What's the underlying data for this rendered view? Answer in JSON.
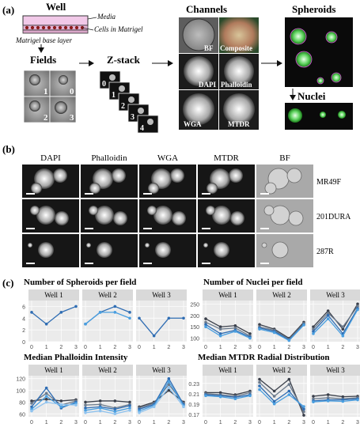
{
  "panel_a": {
    "label": "(a)",
    "well_title": "Well",
    "media_label": "Media",
    "cells_label": "Cells in Matrigel",
    "base_label": "Matrigel base layer",
    "fields_title": "Fields",
    "field_numbers": [
      "1",
      "0",
      "2",
      "3"
    ],
    "zstack_title": "Z-stack",
    "zstack_numbers": [
      "0",
      "1",
      "2",
      "3",
      "4"
    ],
    "channels_title": "Channels",
    "channel_labels": [
      "BF",
      "Composite",
      "DAPI",
      "Phalloidin",
      "WGA",
      "MTDR"
    ],
    "spheroids_title": "Spheroids",
    "nuclei_title": "Nuclei"
  },
  "panel_b": {
    "label": "(b)",
    "columns": [
      "DAPI",
      "Phalloidin",
      "WGA",
      "MTDR",
      "BF"
    ],
    "rows": [
      "MR49F",
      "201DURA",
      "287R"
    ]
  },
  "panel_c": {
    "label": "(c)",
    "colors": {
      "strip_bg": "#d9d9d9",
      "panel_bg": "#ebebeb",
      "grid": "#ffffff",
      "series": [
        "#3a3f4a",
        "#6b7a8c",
        "#2f6db3",
        "#4a9fe0",
        "#8fc3ef"
      ]
    }
  },
  "chart_data": [
    {
      "type": "line",
      "title": "Number of Spheroids per field",
      "facets": [
        "Well 1",
        "Well 2",
        "Well 3"
      ],
      "x": [
        0,
        1,
        2,
        3
      ],
      "ylim": [
        0,
        7
      ],
      "yticks": [
        0,
        2,
        4,
        6
      ],
      "series": [
        {
          "facet": "Well 1",
          "values": [
            5,
            3,
            5,
            6
          ]
        },
        {
          "facet": "Well 2",
          "values": [
            3,
            5,
            6,
            5
          ]
        },
        {
          "facet": "Well 2",
          "values": [
            3,
            5,
            5,
            4
          ]
        },
        {
          "facet": "Well 3",
          "values": [
            4,
            1,
            4,
            4
          ]
        }
      ]
    },
    {
      "type": "line",
      "title": "Number of Nuclei per field",
      "facets": [
        "Well 1",
        "Well 2",
        "Well 3"
      ],
      "x": [
        0,
        1,
        2,
        3
      ],
      "ylim": [
        85,
        265
      ],
      "yticks": [
        100,
        150,
        200,
        250
      ],
      "series": [
        {
          "facet": "Well 1",
          "values": [
            185,
            150,
            155,
            120
          ]
        },
        {
          "facet": "Well 1",
          "values": [
            170,
            140,
            145,
            110
          ]
        },
        {
          "facet": "Well 1",
          "values": [
            160,
            120,
            135,
            105
          ]
        },
        {
          "facet": "Well 1",
          "values": [
            150,
            110,
            130,
            100
          ]
        },
        {
          "facet": "Well 2",
          "values": [
            160,
            140,
            100,
            170
          ]
        },
        {
          "facet": "Well 2",
          "values": [
            150,
            135,
            95,
            165
          ]
        },
        {
          "facet": "Well 2",
          "values": [
            145,
            130,
            92,
            160
          ]
        },
        {
          "facet": "Well 2",
          "values": [
            140,
            125,
            90,
            158
          ]
        },
        {
          "facet": "Well 3",
          "values": [
            150,
            220,
            140,
            250
          ]
        },
        {
          "facet": "Well 3",
          "values": [
            140,
            210,
            150,
            240
          ]
        },
        {
          "facet": "Well 3",
          "values": [
            130,
            200,
            120,
            230
          ]
        },
        {
          "facet": "Well 3",
          "values": [
            120,
            185,
            110,
            225
          ]
        }
      ]
    },
    {
      "type": "line",
      "title": "Median Phalloidin Intensity",
      "facets": [
        "Well 1",
        "Well 2",
        "Well 3"
      ],
      "x": [
        0,
        1,
        2,
        3
      ],
      "ylim": [
        55,
        125
      ],
      "yticks": [
        60,
        80,
        100,
        120
      ],
      "series": [
        {
          "facet": "Well 1",
          "values": [
            82,
            85,
            82,
            84
          ]
        },
        {
          "facet": "Well 1",
          "values": [
            78,
            95,
            75,
            82
          ]
        },
        {
          "facet": "Well 1",
          "values": [
            72,
            104,
            70,
            80
          ]
        },
        {
          "facet": "Well 1",
          "values": [
            68,
            90,
            72,
            78
          ]
        },
        {
          "facet": "Well 1",
          "values": [
            65,
            80,
            76,
            75
          ]
        },
        {
          "facet": "Well 2",
          "values": [
            80,
            82,
            82,
            80
          ]
        },
        {
          "facet": "Well 2",
          "values": [
            75,
            76,
            70,
            76
          ]
        },
        {
          "facet": "Well 2",
          "values": [
            70,
            72,
            68,
            74
          ]
        },
        {
          "facet": "Well 2",
          "values": [
            66,
            70,
            64,
            70
          ]
        },
        {
          "facet": "Well 2",
          "values": [
            62,
            65,
            60,
            66
          ]
        },
        {
          "facet": "Well 3",
          "values": [
            72,
            80,
            100,
            80
          ]
        },
        {
          "facet": "Well 3",
          "values": [
            70,
            78,
            110,
            78
          ]
        },
        {
          "facet": "Well 3",
          "values": [
            68,
            76,
            120,
            76
          ]
        },
        {
          "facet": "Well 3",
          "values": [
            65,
            74,
            115,
            74
          ]
        },
        {
          "facet": "Well 3",
          "values": [
            62,
            72,
            105,
            72
          ]
        }
      ]
    },
    {
      "type": "line",
      "title": "Median MTDR Radial Distribution",
      "facets": [
        "Well 1",
        "Well 2",
        "Well 3"
      ],
      "x": [
        0,
        1,
        2,
        3
      ],
      "ylim": [
        0.165,
        0.245
      ],
      "yticks": [
        0.17,
        0.19,
        0.21,
        0.23
      ],
      "series": [
        {
          "facet": "Well 1",
          "values": [
            0.212,
            0.212,
            0.208,
            0.215
          ]
        },
        {
          "facet": "Well 1",
          "values": [
            0.21,
            0.208,
            0.205,
            0.212
          ]
        },
        {
          "facet": "Well 1",
          "values": [
            0.208,
            0.206,
            0.203,
            0.208
          ]
        },
        {
          "facet": "Well 1",
          "values": [
            0.206,
            0.204,
            0.2,
            0.206
          ]
        },
        {
          "facet": "Well 2",
          "values": [
            0.238,
            0.215,
            0.238,
            0.168
          ]
        },
        {
          "facet": "Well 2",
          "values": [
            0.232,
            0.205,
            0.228,
            0.175
          ]
        },
        {
          "facet": "Well 2",
          "values": [
            0.225,
            0.195,
            0.215,
            0.18
          ]
        },
        {
          "facet": "Well 2",
          "values": [
            0.218,
            0.19,
            0.208,
            0.185
          ]
        },
        {
          "facet": "Well 3",
          "values": [
            0.205,
            0.208,
            0.204,
            0.205
          ]
        },
        {
          "facet": "Well 3",
          "values": [
            0.2,
            0.202,
            0.2,
            0.202
          ]
        },
        {
          "facet": "Well 3",
          "values": [
            0.196,
            0.198,
            0.198,
            0.2
          ]
        },
        {
          "facet": "Well 3",
          "values": [
            0.194,
            0.196,
            0.195,
            0.198
          ]
        }
      ]
    }
  ]
}
